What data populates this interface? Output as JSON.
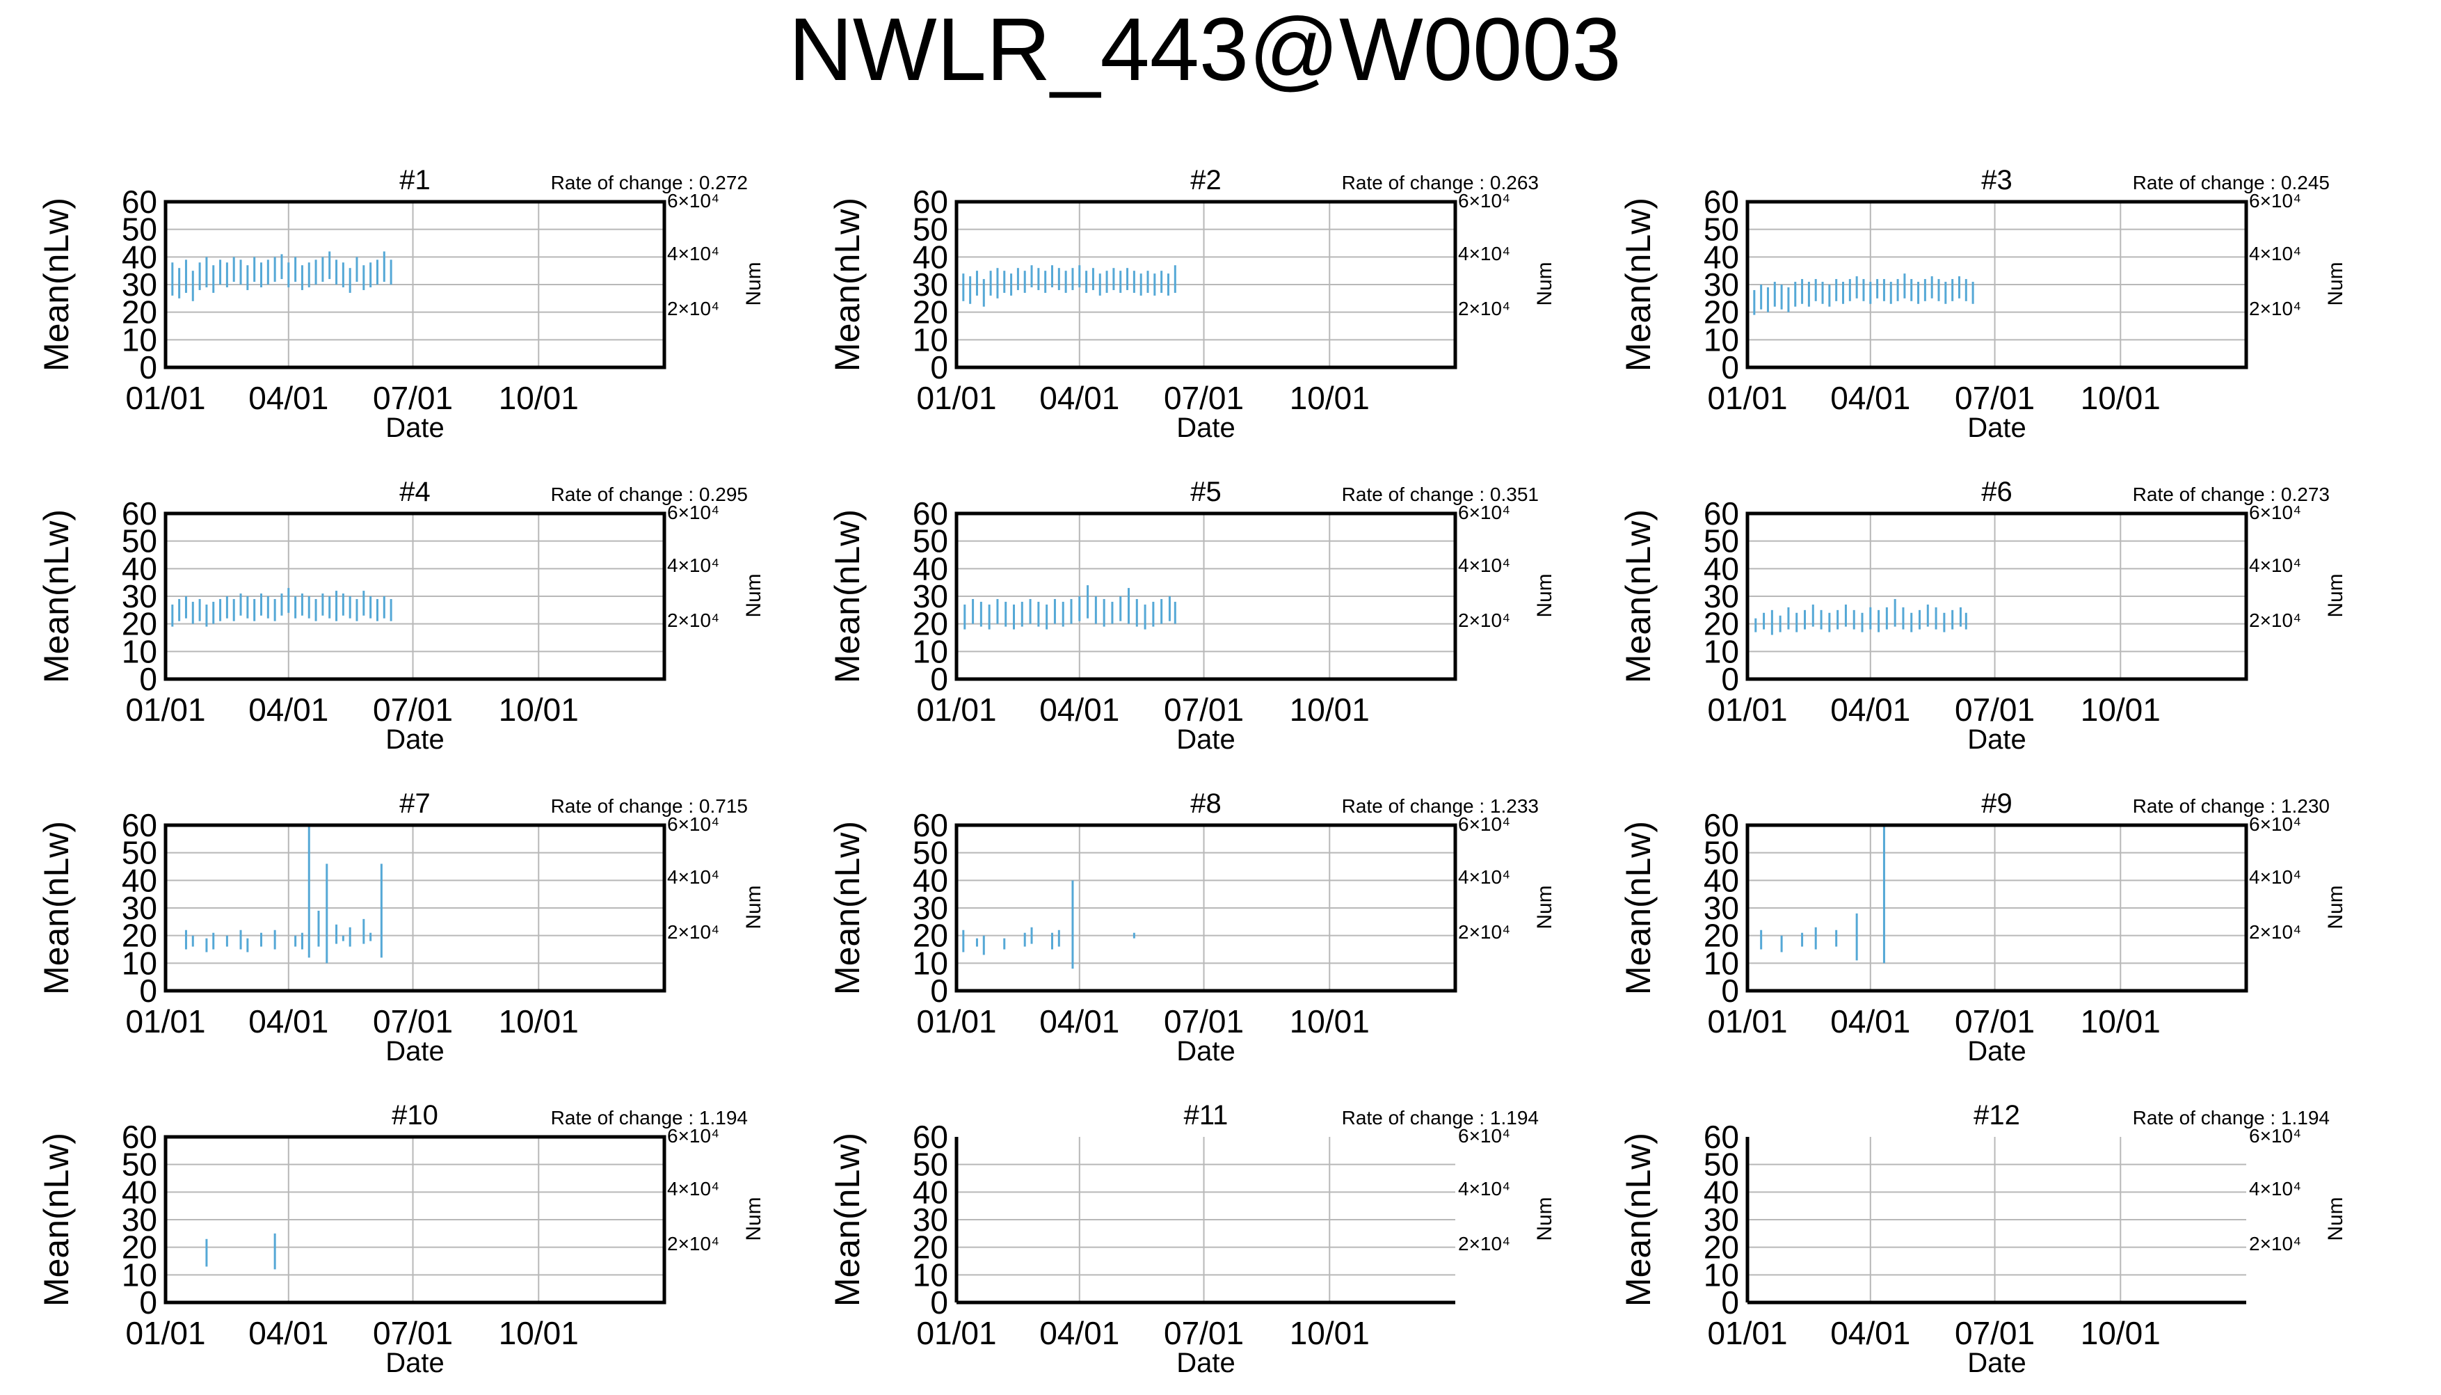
{
  "title": "NWLR_443@W0003",
  "colors": {
    "series": "#55a8d6",
    "grid": "#b8b8b8",
    "axis": "#000000"
  },
  "chart_data": [
    {
      "type": "line",
      "panel_title": "#1",
      "rate_label": "Rate of change : 0.272",
      "xlabel": "Date",
      "ylabel": "Mean(nLw)",
      "y2label": "Num",
      "xticks": [
        "01/01",
        "04/01",
        "07/01",
        "10/01"
      ],
      "yticks": [
        "0",
        "10",
        "20",
        "30",
        "40",
        "50",
        "60"
      ],
      "ylim": [
        0,
        60
      ],
      "y2ticks": [
        "6×10⁴",
        "4×10⁴",
        "2×10⁴"
      ],
      "xlim_days": [
        0,
        365
      ],
      "series": [
        {
          "days": [
            0,
            5,
            10,
            15,
            20,
            25,
            30,
            35,
            40,
            45,
            50,
            55,
            60,
            65,
            70,
            75,
            80,
            85,
            90,
            95,
            100,
            105,
            110,
            115,
            120,
            125,
            130,
            135,
            140,
            145,
            150,
            155,
            160,
            165
          ],
          "low": [
            28,
            26,
            25,
            27,
            24,
            28,
            29,
            27,
            30,
            29,
            31,
            30,
            28,
            31,
            29,
            30,
            31,
            32,
            29,
            31,
            28,
            29,
            30,
            31,
            32,
            30,
            29,
            27,
            31,
            28,
            29,
            30,
            31,
            30
          ],
          "high": [
            37,
            38,
            36,
            39,
            35,
            38,
            40,
            37,
            39,
            38,
            40,
            39,
            37,
            40,
            38,
            39,
            40,
            41,
            38,
            40,
            37,
            38,
            39,
            40,
            42,
            39,
            38,
            36,
            40,
            37,
            38,
            39,
            42,
            39
          ]
        }
      ]
    },
    {
      "type": "line",
      "panel_title": "#2",
      "rate_label": "Rate of change : 0.263",
      "xlabel": "Date",
      "ylabel": "Mean(nLw)",
      "y2label": "Num",
      "xticks": [
        "01/01",
        "04/01",
        "07/01",
        "10/01"
      ],
      "yticks": [
        "0",
        "10",
        "20",
        "30",
        "40",
        "50",
        "60"
      ],
      "ylim": [
        0,
        60
      ],
      "y2ticks": [
        "6×10⁴",
        "4×10⁴",
        "2×10⁴"
      ],
      "xlim_days": [
        0,
        365
      ],
      "series": [
        {
          "days": [
            0,
            5,
            10,
            15,
            20,
            25,
            30,
            35,
            40,
            45,
            50,
            55,
            60,
            65,
            70,
            75,
            80,
            85,
            90,
            95,
            100,
            105,
            110,
            115,
            120,
            125,
            130,
            135,
            140,
            145,
            150,
            155,
            160
          ],
          "low": [
            25,
            24,
            23,
            26,
            22,
            26,
            25,
            27,
            26,
            28,
            27,
            29,
            28,
            27,
            29,
            28,
            27,
            28,
            29,
            27,
            28,
            26,
            27,
            28,
            27,
            28,
            27,
            26,
            27,
            26,
            27,
            26,
            27
          ],
          "high": [
            35,
            34,
            33,
            35,
            32,
            35,
            36,
            35,
            34,
            36,
            35,
            37,
            36,
            35,
            37,
            36,
            35,
            36,
            37,
            35,
            36,
            34,
            35,
            36,
            35,
            36,
            35,
            34,
            35,
            34,
            35,
            34,
            37
          ]
        }
      ]
    },
    {
      "type": "line",
      "panel_title": "#3",
      "rate_label": "Rate of change : 0.245",
      "xlabel": "Date",
      "ylabel": "Mean(nLw)",
      "y2label": "Num",
      "xticks": [
        "01/01",
        "04/01",
        "07/01",
        "10/01"
      ],
      "yticks": [
        "0",
        "10",
        "20",
        "30",
        "40",
        "50",
        "60"
      ],
      "ylim": [
        0,
        60
      ],
      "y2ticks": [
        "6×10⁴",
        "4×10⁴",
        "2×10⁴"
      ],
      "xlim_days": [
        0,
        365
      ],
      "series": [
        {
          "days": [
            0,
            5,
            10,
            15,
            20,
            25,
            30,
            35,
            40,
            45,
            50,
            55,
            60,
            65,
            70,
            75,
            80,
            85,
            90,
            95,
            100,
            105,
            110,
            115,
            120,
            125,
            130,
            135,
            140,
            145,
            150,
            155,
            160,
            165
          ],
          "low": [
            20,
            19,
            21,
            20,
            22,
            21,
            20,
            22,
            23,
            22,
            24,
            23,
            22,
            24,
            23,
            24,
            25,
            24,
            23,
            25,
            24,
            23,
            24,
            25,
            24,
            23,
            24,
            25,
            24,
            23,
            24,
            25,
            24,
            23
          ],
          "high": [
            29,
            28,
            30,
            29,
            31,
            30,
            29,
            31,
            32,
            31,
            32,
            31,
            30,
            32,
            31,
            32,
            33,
            32,
            31,
            32,
            32,
            31,
            32,
            34,
            32,
            31,
            32,
            33,
            32,
            31,
            32,
            33,
            32,
            31
          ]
        }
      ]
    },
    {
      "type": "line",
      "panel_title": "#4",
      "rate_label": "Rate of change : 0.295",
      "xlabel": "Date",
      "ylabel": "Mean(nLw)",
      "y2label": "Num",
      "xticks": [
        "01/01",
        "04/01",
        "07/01",
        "10/01"
      ],
      "yticks": [
        "0",
        "10",
        "20",
        "30",
        "40",
        "50",
        "60"
      ],
      "ylim": [
        0,
        60
      ],
      "y2ticks": [
        "6×10⁴",
        "4×10⁴",
        "2×10⁴"
      ],
      "xlim_days": [
        0,
        365
      ],
      "series": [
        {
          "days": [
            0,
            5,
            10,
            15,
            20,
            25,
            30,
            35,
            40,
            45,
            50,
            55,
            60,
            65,
            70,
            75,
            80,
            85,
            90,
            95,
            100,
            105,
            110,
            115,
            120,
            125,
            130,
            135,
            140,
            145,
            150,
            155,
            160,
            165
          ],
          "low": [
            20,
            19,
            21,
            22,
            20,
            21,
            19,
            20,
            21,
            22,
            21,
            23,
            22,
            21,
            23,
            22,
            21,
            23,
            24,
            22,
            23,
            22,
            21,
            23,
            22,
            21,
            23,
            22,
            21,
            23,
            22,
            21,
            22,
            21
          ],
          "high": [
            28,
            27,
            29,
            30,
            28,
            29,
            27,
            28,
            29,
            30,
            29,
            31,
            30,
            29,
            31,
            30,
            29,
            31,
            33,
            30,
            31,
            30,
            29,
            31,
            30,
            32,
            31,
            30,
            29,
            32,
            30,
            29,
            30,
            29
          ]
        }
      ]
    },
    {
      "type": "line",
      "panel_title": "#5",
      "rate_label": "Rate of change : 0.351",
      "xlabel": "Date",
      "ylabel": "Mean(nLw)",
      "y2label": "Num",
      "xticks": [
        "01/01",
        "04/01",
        "07/01",
        "10/01"
      ],
      "yticks": [
        "0",
        "10",
        "20",
        "30",
        "40",
        "50",
        "60"
      ],
      "ylim": [
        0,
        60
      ],
      "y2ticks": [
        "6×10⁴",
        "4×10⁴",
        "2×10⁴"
      ],
      "xlim_days": [
        0,
        365
      ],
      "series": [
        {
          "days": [
            0,
            6,
            12,
            18,
            24,
            30,
            36,
            42,
            48,
            54,
            60,
            66,
            72,
            78,
            84,
            90,
            96,
            102,
            108,
            114,
            120,
            126,
            132,
            138,
            144,
            150,
            156,
            160
          ],
          "low": [
            19,
            18,
            20,
            19,
            18,
            20,
            19,
            18,
            19,
            20,
            19,
            18,
            20,
            19,
            20,
            21,
            22,
            20,
            19,
            20,
            21,
            20,
            19,
            18,
            19,
            20,
            21,
            20
          ],
          "high": [
            28,
            27,
            29,
            28,
            27,
            29,
            28,
            27,
            28,
            29,
            28,
            27,
            29,
            28,
            29,
            30,
            34,
            30,
            29,
            28,
            30,
            33,
            29,
            27,
            28,
            29,
            30,
            28
          ]
        }
      ]
    },
    {
      "type": "line",
      "panel_title": "#6",
      "rate_label": "Rate of change : 0.273",
      "xlabel": "Date",
      "ylabel": "Mean(nLw)",
      "y2label": "Num",
      "xticks": [
        "01/01",
        "04/01",
        "07/01",
        "10/01"
      ],
      "yticks": [
        "0",
        "10",
        "20",
        "30",
        "40",
        "50",
        "60"
      ],
      "ylim": [
        0,
        60
      ],
      "y2ticks": [
        "6×10⁴",
        "4×10⁴",
        "2×10⁴"
      ],
      "xlim_days": [
        0,
        365
      ],
      "series": [
        {
          "days": [
            0,
            6,
            12,
            18,
            24,
            30,
            36,
            42,
            48,
            54,
            60,
            66,
            72,
            78,
            84,
            90,
            96,
            102,
            108,
            114,
            120,
            126,
            132,
            138,
            144,
            150,
            156,
            160
          ],
          "low": [
            18,
            17,
            18,
            16,
            17,
            18,
            17,
            18,
            19,
            18,
            17,
            18,
            19,
            18,
            17,
            18,
            17,
            18,
            19,
            18,
            17,
            18,
            19,
            18,
            17,
            18,
            19,
            18
          ],
          "high": [
            23,
            22,
            24,
            25,
            23,
            26,
            24,
            25,
            27,
            25,
            24,
            25,
            27,
            25,
            24,
            26,
            25,
            26,
            29,
            26,
            24,
            25,
            27,
            26,
            24,
            25,
            26,
            24
          ]
        }
      ]
    },
    {
      "type": "line",
      "panel_title": "#7",
      "rate_label": "Rate of change : 0.715",
      "xlabel": "Date",
      "ylabel": "Mean(nLw)",
      "y2label": "Num",
      "xticks": [
        "01/01",
        "04/01",
        "07/01",
        "10/01"
      ],
      "yticks": [
        "0",
        "10",
        "20",
        "30",
        "40",
        "50",
        "60"
      ],
      "ylim": [
        0,
        60
      ],
      "y2ticks": [
        "6×10⁴",
        "4×10⁴",
        "2×10⁴"
      ],
      "xlim_days": [
        0,
        365
      ],
      "series": [
        {
          "days": [
            15,
            20,
            30,
            35,
            45,
            55,
            60,
            70,
            80,
            95,
            100,
            105,
            112,
            118,
            125,
            130,
            135,
            145,
            150,
            158
          ],
          "low": [
            15,
            16,
            14,
            15,
            16,
            15,
            14,
            16,
            15,
            16,
            15,
            12,
            16,
            10,
            17,
            18,
            16,
            17,
            18,
            12
          ],
          "high": [
            22,
            20,
            19,
            21,
            20,
            22,
            19,
            21,
            22,
            20,
            21,
            60,
            29,
            46,
            24,
            20,
            23,
            26,
            21,
            46
          ]
        }
      ]
    },
    {
      "type": "line",
      "panel_title": "#8",
      "rate_label": "Rate of change : 1.233",
      "xlabel": "Date",
      "ylabel": "Mean(nLw)",
      "y2label": "Num",
      "xticks": [
        "01/01",
        "04/01",
        "07/01",
        "10/01"
      ],
      "yticks": [
        "0",
        "10",
        "20",
        "30",
        "40",
        "50",
        "60"
      ],
      "ylim": [
        0,
        60
      ],
      "y2ticks": [
        "6×10⁴",
        "4×10⁴",
        "2×10⁴"
      ],
      "xlim_days": [
        0,
        365
      ],
      "series": [
        {
          "days": [
            5,
            15,
            20,
            35,
            50,
            55,
            70,
            75,
            85,
            130
          ],
          "low": [
            14,
            16,
            13,
            15,
            16,
            17,
            15,
            16,
            8,
            19
          ],
          "high": [
            22,
            19,
            20,
            19,
            21,
            23,
            21,
            22,
            40,
            21
          ]
        }
      ]
    },
    {
      "type": "line",
      "panel_title": "#9",
      "rate_label": "Rate of change : 1.230",
      "xlabel": "Date",
      "ylabel": "Mean(nLw)",
      "y2label": "Num",
      "xticks": [
        "01/01",
        "04/01",
        "07/01",
        "10/01"
      ],
      "yticks": [
        "0",
        "10",
        "20",
        "30",
        "40",
        "50",
        "60"
      ],
      "ylim": [
        0,
        60
      ],
      "y2ticks": [
        "6×10⁴",
        "4×10⁴",
        "2×10⁴"
      ],
      "xlim_days": [
        0,
        365
      ],
      "series": [
        {
          "days": [
            10,
            25,
            40,
            50,
            65,
            80,
            100
          ],
          "low": [
            15,
            14,
            16,
            15,
            16,
            11,
            10
          ],
          "high": [
            22,
            20,
            21,
            23,
            22,
            28,
            60
          ]
        }
      ]
    },
    {
      "type": "line",
      "panel_title": "#10",
      "rate_label": "Rate of change : 1.194",
      "xlabel": "Date",
      "ylabel": "Mean(nLw)",
      "y2label": "Num",
      "xticks": [
        "01/01",
        "04/01",
        "07/01",
        "10/01"
      ],
      "yticks": [
        "0",
        "10",
        "20",
        "30",
        "40",
        "50",
        "60"
      ],
      "ylim": [
        0,
        60
      ],
      "y2ticks": [
        "6×10⁴",
        "4×10⁴",
        "2×10⁴"
      ],
      "xlim_days": [
        0,
        365
      ],
      "series": [
        {
          "days": [
            30,
            80
          ],
          "low": [
            13,
            12
          ],
          "high": [
            23,
            25
          ]
        }
      ]
    },
    {
      "type": "line",
      "panel_title": "#11",
      "rate_label": "Rate of change : 1.194",
      "xlabel": "Date",
      "ylabel": "Mean(nLw)",
      "y2label": "Num",
      "xticks": [
        "01/01",
        "04/01",
        "07/01",
        "10/01"
      ],
      "yticks": [
        "0",
        "10",
        "20",
        "30",
        "40",
        "50",
        "60"
      ],
      "ylim": [
        0,
        60
      ],
      "y2ticks": [
        "6×10⁴",
        "4×10⁴",
        "2×10⁴"
      ],
      "xlim_days": [
        0,
        365
      ],
      "series": [
        {
          "days": [],
          "low": [],
          "high": []
        }
      ]
    },
    {
      "type": "line",
      "panel_title": "#12",
      "rate_label": "Rate of change : 1.194",
      "xlabel": "Date",
      "ylabel": "Mean(nLw)",
      "y2label": "Num",
      "xticks": [
        "01/01",
        "04/01",
        "07/01",
        "10/01"
      ],
      "yticks": [
        "0",
        "10",
        "20",
        "30",
        "40",
        "50",
        "60"
      ],
      "ylim": [
        0,
        60
      ],
      "y2ticks": [
        "6×10⁴",
        "4×10⁴",
        "2×10⁴"
      ],
      "xlim_days": [
        0,
        365
      ],
      "series": [
        {
          "days": [],
          "low": [],
          "high": []
        }
      ]
    }
  ]
}
